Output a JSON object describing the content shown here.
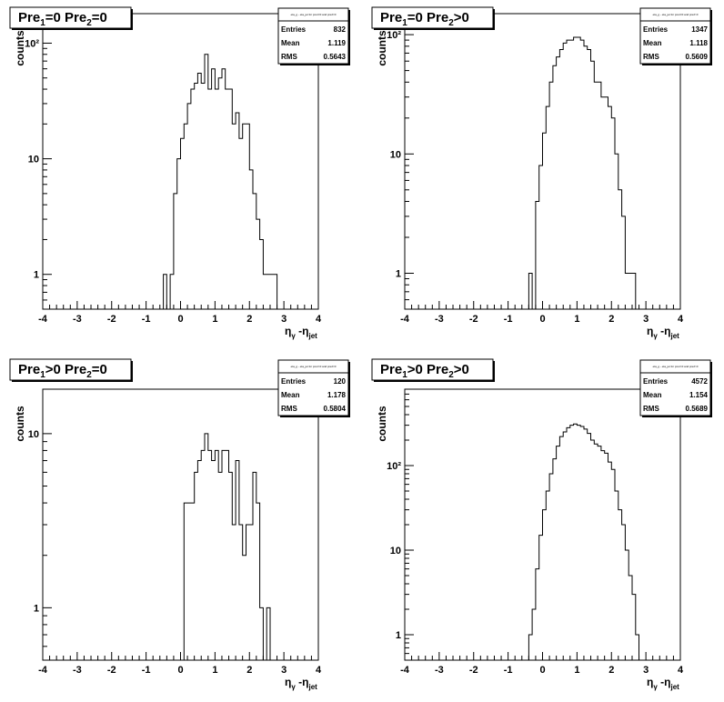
{
  "chart_data": [
    {
      "type": "histogram",
      "title": {
        "a": "Pre",
        "a_sub": "1",
        "a_rel": "=0",
        "b": "Pre",
        "b_sub": "2",
        "b_rel": "=0"
      },
      "stats_header": "eta_g - eta_jet for pre1=0 and pre2=0",
      "stats": [
        {
          "label": "Entries",
          "value": "832"
        },
        {
          "label": "Mean",
          "value": "1.119"
        },
        {
          "label": "RMS",
          "value": "0.5643"
        }
      ],
      "xlabel": {
        "eta1": "η",
        "sub1": "γ",
        "mid": " -η",
        "sub2": "jet"
      },
      "ylabel": "counts",
      "xlim": [
        -4,
        4
      ],
      "ylim": [
        0.5,
        180
      ],
      "log_y": true,
      "x_ticks": [
        "-4",
        "-3",
        "-2",
        "-1",
        "0",
        "1",
        "2",
        "3",
        "4"
      ],
      "y_ticks": [
        {
          "value": 1,
          "label": "1"
        },
        {
          "value": 10,
          "label": "10"
        },
        {
          "value": 100,
          "label": "10²"
        }
      ],
      "bin_start": -0.5,
      "bin_width": 0.1,
      "counts": [
        1,
        0,
        1,
        5,
        10,
        15,
        20,
        30,
        40,
        45,
        55,
        45,
        80,
        40,
        60,
        40,
        50,
        60,
        40,
        40,
        20,
        25,
        15,
        20,
        20,
        8,
        5,
        3,
        2,
        1,
        1,
        1,
        1,
        0
      ]
    },
    {
      "type": "histogram",
      "title": {
        "a": "Pre",
        "a_sub": "1",
        "a_rel": "=0",
        "b": "Pre",
        "b_sub": "2",
        "b_rel": ">0"
      },
      "stats_header": "eta_g - eta_jet for pre1=0 and pre2>0",
      "stats": [
        {
          "label": "Entries",
          "value": "1347"
        },
        {
          "label": "Mean",
          "value": "1.118"
        },
        {
          "label": "RMS",
          "value": "0.5609"
        }
      ],
      "xlabel": {
        "eta1": "η",
        "sub1": "γ",
        "mid": " -η",
        "sub2": "jet"
      },
      "ylabel": "counts",
      "xlim": [
        -4,
        4
      ],
      "ylim": [
        0.5,
        150
      ],
      "log_y": true,
      "x_ticks": [
        "-4",
        "-3",
        "-2",
        "-1",
        "0",
        "1",
        "2",
        "3",
        "4"
      ],
      "y_ticks": [
        {
          "value": 1,
          "label": "1"
        },
        {
          "value": 10,
          "label": "10"
        },
        {
          "value": 100,
          "label": "10²"
        }
      ],
      "bin_start": -0.4,
      "bin_width": 0.1,
      "counts": [
        1,
        0,
        4,
        8,
        15,
        25,
        40,
        55,
        65,
        75,
        85,
        90,
        90,
        95,
        95,
        90,
        80,
        75,
        60,
        40,
        40,
        30,
        30,
        25,
        20,
        10,
        5,
        3,
        1,
        1,
        1,
        0
      ]
    },
    {
      "type": "histogram",
      "title": {
        "a": "Pre",
        "a_sub": "1",
        "a_rel": ">0",
        "b": "Pre",
        "b_sub": "2",
        "b_rel": "=0"
      },
      "stats_header": "eta_g - eta_jet for pre1>0 and pre2=0",
      "stats": [
        {
          "label": "Entries",
          "value": "120"
        },
        {
          "label": "Mean",
          "value": "1.178"
        },
        {
          "label": "RMS",
          "value": "0.5804"
        }
      ],
      "xlabel": {
        "eta1": "η",
        "sub1": "γ",
        "mid": " -η",
        "sub2": "jet"
      },
      "ylabel": "counts",
      "xlim": [
        -4,
        4
      ],
      "ylim": [
        0.5,
        18
      ],
      "log_y": true,
      "x_ticks": [
        "-4",
        "-3",
        "-2",
        "-1",
        "0",
        "1",
        "2",
        "3",
        "4"
      ],
      "y_ticks": [
        {
          "value": 1,
          "label": "1"
        },
        {
          "value": 10,
          "label": "10"
        }
      ],
      "bin_start": 0.1,
      "bin_width": 0.1,
      "counts": [
        4,
        4,
        4,
        6,
        7,
        8,
        10,
        8,
        7,
        8,
        6,
        8,
        8,
        6,
        3,
        7,
        3,
        2,
        3,
        3,
        6,
        4,
        1,
        0,
        1
      ]
    },
    {
      "type": "histogram",
      "title": {
        "a": "Pre",
        "a_sub": "1",
        "a_rel": ">0",
        "b": "Pre",
        "b_sub": "2",
        "b_rel": ">0"
      },
      "stats_header": "eta_g - eta_jet for pre1>0 and pre2>0",
      "stats": [
        {
          "label": "Entries",
          "value": "4572"
        },
        {
          "label": "Mean",
          "value": "1.154"
        },
        {
          "label": "RMS",
          "value": "0.5689"
        }
      ],
      "xlabel": {
        "eta1": "η",
        "sub1": "γ",
        "mid": " -η",
        "sub2": "jet"
      },
      "ylabel": "counts",
      "xlim": [
        -4,
        4
      ],
      "ylim": [
        0.5,
        800
      ],
      "log_y": true,
      "x_ticks": [
        "-4",
        "-3",
        "-2",
        "-1",
        "0",
        "1",
        "2",
        "3",
        "4"
      ],
      "y_ticks": [
        {
          "value": 1,
          "label": "1"
        },
        {
          "value": 10,
          "label": "10"
        },
        {
          "value": 100,
          "label": "10²"
        }
      ],
      "bin_start": -0.4,
      "bin_width": 0.1,
      "counts": [
        1,
        2,
        6,
        15,
        30,
        50,
        80,
        120,
        170,
        220,
        250,
        280,
        300,
        310,
        300,
        290,
        270,
        240,
        200,
        180,
        170,
        150,
        140,
        110,
        90,
        50,
        30,
        20,
        10,
        5,
        3,
        1,
        0
      ]
    }
  ]
}
